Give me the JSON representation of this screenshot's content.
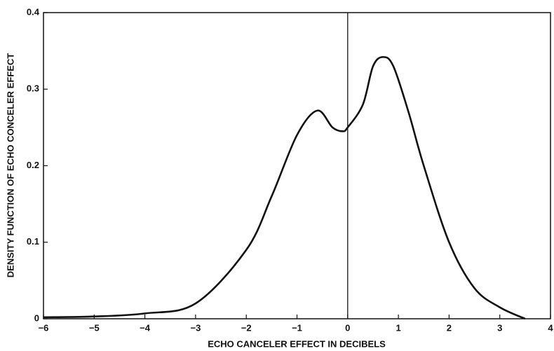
{
  "chart_data": {
    "type": "line",
    "x_label": "ECHO CANCELER EFFECT IN DECIBELS",
    "y_label": "DENSITY FUNCTION OF ECHO CONCELER EFFECT",
    "x": [
      -6,
      -5,
      -4,
      -3,
      -2,
      -1.5,
      -1,
      -0.6,
      -0.3,
      -0.1,
      0,
      0.3,
      0.5,
      0.7,
      0.9,
      1.2,
      1.5,
      2,
      2.5,
      3,
      3.5
    ],
    "series": [
      {
        "color": "#111111",
        "values": [
          0.002,
          0.003,
          0.007,
          0.02,
          0.09,
          0.16,
          0.24,
          0.272,
          0.25,
          0.245,
          0.25,
          0.28,
          0.33,
          0.342,
          0.33,
          0.27,
          0.2,
          0.1,
          0.04,
          0.015,
          0
        ]
      }
    ],
    "xlim": [
      -6,
      4
    ],
    "ylim": [
      0,
      0.4
    ],
    "xticks": [
      {
        "value": -6,
        "label": "−6"
      },
      {
        "value": -5,
        "label": "−5"
      },
      {
        "value": -4,
        "label": "−4"
      },
      {
        "value": -3,
        "label": "−3"
      },
      {
        "value": -2,
        "label": "−2"
      },
      {
        "value": -1,
        "label": "−1"
      },
      0,
      1,
      2,
      3,
      4
    ],
    "yticks": [
      0,
      0.1,
      0.2,
      0.3,
      0.4
    ],
    "reference_line_x": 0
  }
}
